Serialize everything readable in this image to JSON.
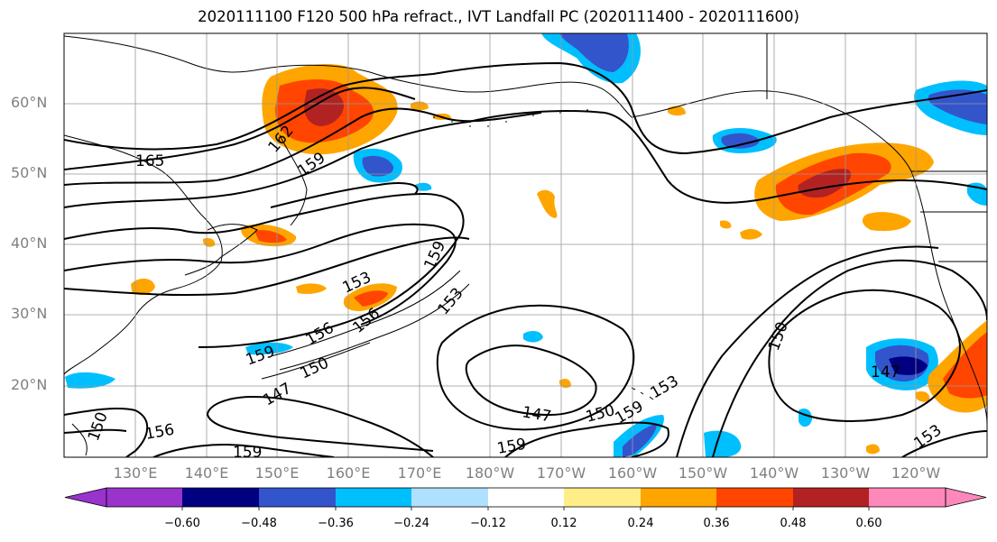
{
  "title": "2020111100 F120 500 hPa refract., IVT Landfall PC (2020111400 - 2020111600)",
  "lat_labels": [
    "60°N",
    "50°N",
    "40°N",
    "30°N",
    "20°N"
  ],
  "lon_labels": [
    "130°E",
    "140°E",
    "150°E",
    "160°E",
    "170°E",
    "180°W",
    "170°W",
    "160°W",
    "150°W",
    "140°W",
    "130°W",
    "120°W"
  ],
  "contour_labels": [
    "165",
    "162",
    "159",
    "159",
    "153",
    "156",
    "156",
    "153",
    "159",
    "150",
    "147",
    "150",
    "156",
    "159",
    "159",
    "147",
    "150",
    "159",
    "153",
    "150",
    "147",
    "153"
  ],
  "colorbar": {
    "ticks": [
      "−0.60",
      "−0.48",
      "−0.36",
      "−0.24",
      "−0.12",
      "0.12",
      "0.24",
      "0.36",
      "0.48",
      "0.60"
    ],
    "colors": [
      "#9933cc",
      "#000080",
      "#3355cc",
      "#00bfff",
      "#b0e0ff",
      "#ffffff",
      "#ffee88",
      "#ffa500",
      "#ff4500",
      "#b22222",
      "#ff88bb"
    ]
  },
  "colors": {
    "land_outline": "#000000",
    "contour": "#000000",
    "grid": "#999999",
    "axis_label": "#808080"
  }
}
